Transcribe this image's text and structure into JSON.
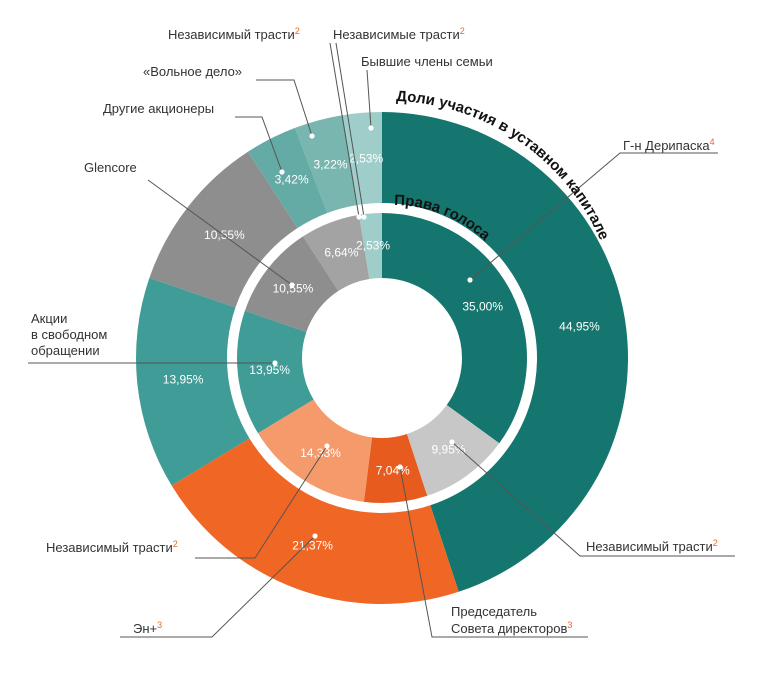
{
  "colors": {
    "deripaska": "#14766e",
    "trust_grey": "#c7c7c7",
    "chairman": "#e85b1f",
    "en_plus": "#f06624",
    "independent_trust_orange": "#f59a6b",
    "free_float": "#3f9c96",
    "glencore": "#8e8e8e",
    "other_shareholders": "#64aaa5",
    "volnoe_delo": "#79b6b0",
    "trusts_small": "#a3a3a3",
    "family": "#9fcdc9",
    "superscript": "#e8682a"
  },
  "chart_data": [
    {
      "type": "pie",
      "variant": "donut-outer",
      "title": "Доли участия в уставном капитале",
      "slices": [
        {
          "key": "deripaska",
          "label": "Г-н Дерипаска",
          "sup": "4",
          "value": 44.95,
          "value_label": "44,95%",
          "color_key": "deripaska"
        },
        {
          "key": "en_plus",
          "label": "Эн+",
          "sup": "3",
          "value": 21.37,
          "value_label": "21,37%",
          "color_key": "en_plus"
        },
        {
          "key": "free_float",
          "label": "Акции в свободном обращении",
          "value": 13.95,
          "value_label": "13,95%",
          "color_key": "free_float"
        },
        {
          "key": "glencore",
          "label": "Glencore",
          "value": 10.55,
          "value_label": "10,55%",
          "color_key": "glencore"
        },
        {
          "key": "other_shareholders",
          "label": "Другие акционеры",
          "value": 3.42,
          "value_label": "3,42%",
          "color_key": "other_shareholders"
        },
        {
          "key": "volnoe_delo",
          "label": "«Вольное дело»",
          "value": 3.22,
          "value_label": "3,22%",
          "color_key": "volnoe_delo"
        },
        {
          "key": "family",
          "label": "Бывшие члены семьи",
          "value": 2.53,
          "value_label": "2,53%",
          "color_key": "family"
        }
      ]
    },
    {
      "type": "pie",
      "variant": "donut-inner",
      "title": "Права голоса",
      "slices": [
        {
          "key": "deripaska",
          "label": "Г-н Дерипаска",
          "value": 35.0,
          "value_label": "35,00%",
          "color_key": "deripaska"
        },
        {
          "key": "trust_grey",
          "label": "Независимый трасти",
          "sup": "2",
          "value": 9.95,
          "value_label": "9,95%",
          "color_key": "trust_grey"
        },
        {
          "key": "chairman",
          "label": "Председатель Совета директоров",
          "sup": "3",
          "value": 7.04,
          "value_label": "7,04%",
          "color_key": "chairman"
        },
        {
          "key": "independent_trust_orange",
          "label": "Независимый трасти",
          "sup": "2",
          "value": 14.33,
          "value_label": "14,33%",
          "color_key": "independent_trust_orange"
        },
        {
          "key": "free_float",
          "label": "Акции в свободном обращении",
          "value": 13.95,
          "value_label": "13,95%",
          "color_key": "free_float"
        },
        {
          "key": "glencore",
          "label": "Glencore",
          "value": 10.55,
          "value_label": "10,55%",
          "color_key": "glencore"
        },
        {
          "key": "trusts_small",
          "label": "Независимые трасти",
          "sup": "2",
          "value": 6.64,
          "value_label": "6,64%",
          "color_key": "trusts_small"
        },
        {
          "key": "family",
          "label": "Бывшие члены семьи",
          "value": 2.53,
          "value_label": "2,53%",
          "color_key": "family"
        }
      ]
    }
  ],
  "callouts": {
    "independent_trust_top": {
      "text": "Независимый трасти",
      "sup": "2"
    },
    "independent_trusts_top": {
      "text": "Независимые трасти",
      "sup": "2"
    },
    "family": {
      "text": "Бывшие члены семьи"
    },
    "volnoe_delo": {
      "text": "«Вольное дело»"
    },
    "other_shareholders": {
      "text": "Другие акционеры"
    },
    "glencore": {
      "text": "Glencore"
    },
    "free_float": {
      "lines": [
        "Акции",
        "в свободном",
        "обращении"
      ]
    },
    "independent_trust_left": {
      "text": "Независимый трасти",
      "sup": "2"
    },
    "en_plus": {
      "text": "Эн+",
      "sup": "3"
    },
    "chairman": {
      "lines": [
        "Председатель",
        "Совета директоров"
      ],
      "sup": "3"
    },
    "independent_trust_right": {
      "text": "Независимый трасти",
      "sup": "2"
    },
    "deripaska": {
      "text": "Г-н Дерипаска",
      "sup": "4"
    }
  }
}
